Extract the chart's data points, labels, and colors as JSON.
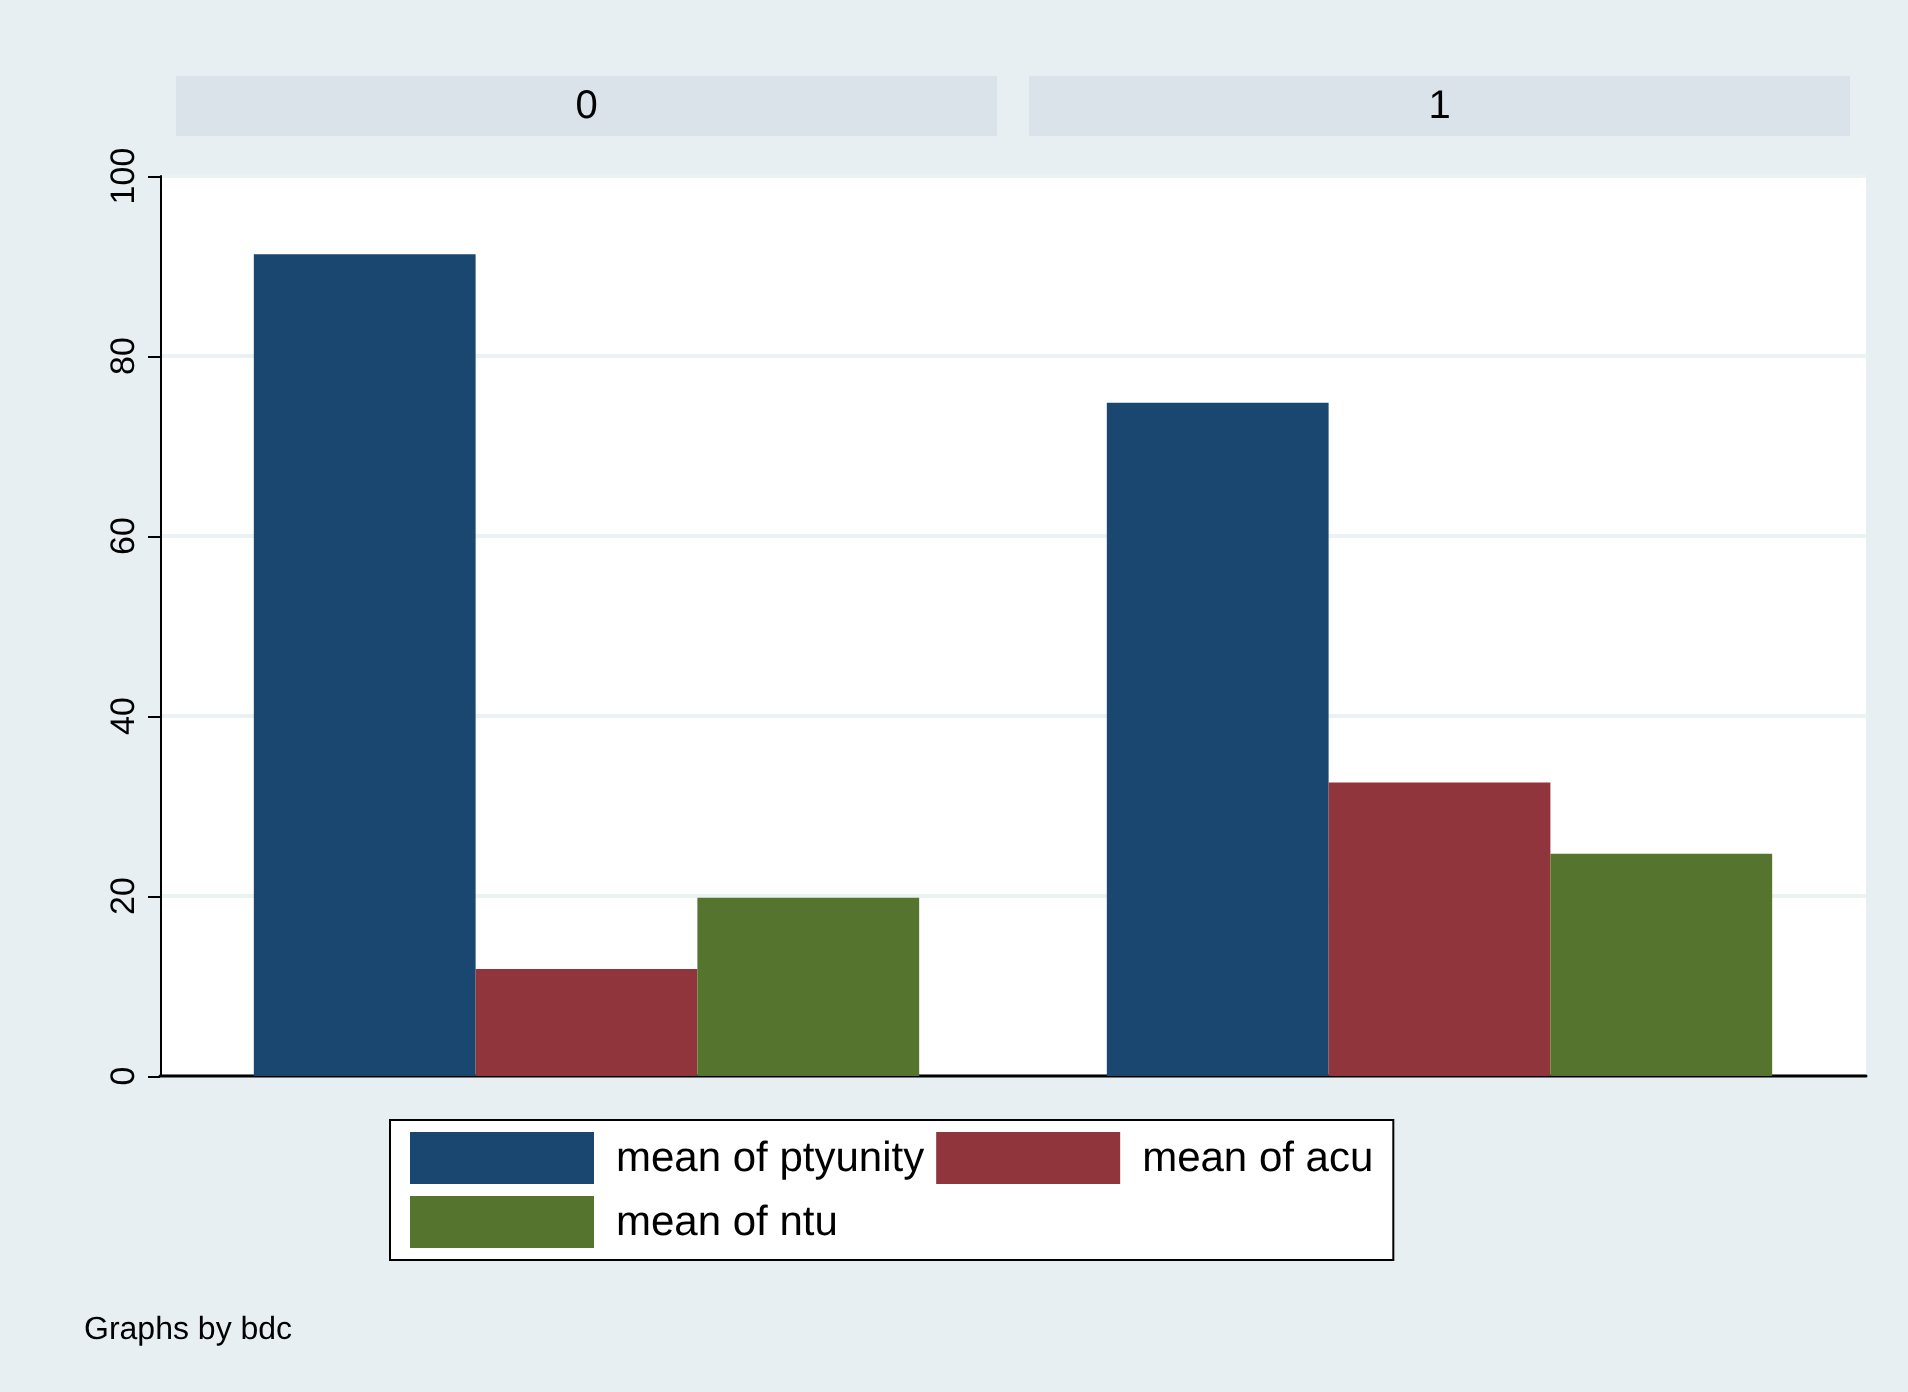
{
  "chart_data": {
    "type": "bar",
    "categories": [
      "0",
      "1"
    ],
    "series": [
      {
        "name": "mean of ptyunity",
        "color": "#1a476f",
        "values": [
          91.3,
          74.8
        ]
      },
      {
        "name": "mean of acu",
        "color": "#90353b",
        "values": [
          11.9,
          32.6
        ]
      },
      {
        "name": "mean of ntu",
        "color": "#55752f",
        "values": [
          19.8,
          24.7
        ]
      }
    ],
    "ylim": [
      0,
      100
    ],
    "yticks": [
      0,
      20,
      40,
      60,
      80,
      100
    ],
    "grid": "y",
    "legend": "bottom",
    "annotations": [
      "Graphs by bdc"
    ]
  }
}
